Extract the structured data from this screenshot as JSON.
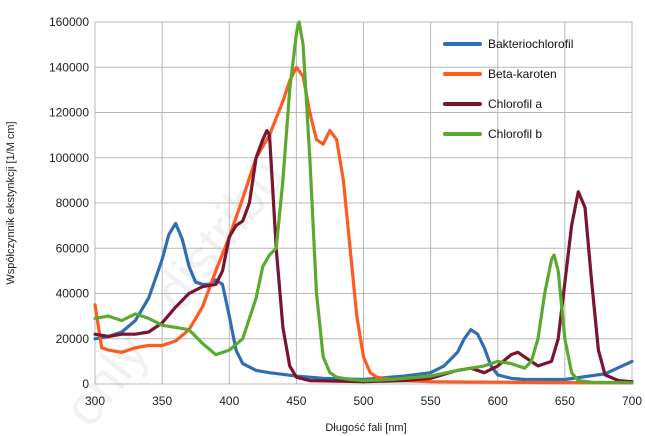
{
  "chart_data": {
    "type": "line",
    "title": "",
    "xlabel": "Długość fali [nm]",
    "ylabel": "Współczynnik ekstynkcji [1/M cm]",
    "xlim": [
      300,
      700
    ],
    "ylim": [
      0,
      160000
    ],
    "xticks": [
      300,
      350,
      400,
      450,
      500,
      550,
      600,
      650,
      700
    ],
    "yticks": [
      0,
      20000,
      40000,
      60000,
      80000,
      100000,
      120000,
      140000,
      160000
    ],
    "grid": true,
    "legend_position": "top-right",
    "watermark": "only - distribu",
    "series": [
      {
        "name": "Bakteriochlorofil",
        "color": "#2f6eb5",
        "x": [
          300,
          310,
          320,
          330,
          340,
          350,
          355,
          360,
          365,
          370,
          375,
          380,
          385,
          390,
          395,
          400,
          405,
          410,
          420,
          430,
          450,
          470,
          500,
          530,
          550,
          560,
          570,
          575,
          580,
          585,
          590,
          595,
          600,
          610,
          620,
          650,
          680,
          700
        ],
        "y": [
          20000,
          21000,
          23000,
          28000,
          38000,
          55000,
          66000,
          71000,
          64000,
          52000,
          45000,
          44000,
          44000,
          46000,
          44000,
          30000,
          15000,
          9000,
          6000,
          5000,
          3500,
          2500,
          2000,
          3500,
          5000,
          8000,
          14000,
          20000,
          24000,
          22000,
          16000,
          8000,
          4000,
          2500,
          2000,
          2000,
          4500,
          10000
        ]
      },
      {
        "name": "Beta-karoten",
        "color": "#ff5a1f",
        "x": [
          300,
          305,
          310,
          320,
          330,
          340,
          350,
          360,
          370,
          380,
          390,
          400,
          410,
          420,
          430,
          440,
          445,
          450,
          455,
          460,
          465,
          470,
          475,
          480,
          485,
          490,
          495,
          500,
          505,
          510,
          520,
          530,
          550,
          600,
          650,
          700
        ],
        "y": [
          35000,
          16000,
          15000,
          14000,
          16000,
          17000,
          17000,
          19000,
          24000,
          34000,
          50000,
          65000,
          82000,
          100000,
          110000,
          125000,
          134000,
          140000,
          136000,
          120000,
          108000,
          106000,
          112000,
          108000,
          90000,
          60000,
          30000,
          12000,
          5000,
          3000,
          2000,
          1500,
          1000,
          800,
          600,
          500
        ]
      },
      {
        "name": "Chlorofil a",
        "color": "#7a1530",
        "x": [
          300,
          310,
          320,
          330,
          340,
          350,
          360,
          370,
          380,
          390,
          395,
          400,
          405,
          410,
          415,
          420,
          425,
          428,
          430,
          432,
          435,
          440,
          445,
          450,
          460,
          500,
          530,
          550,
          570,
          580,
          590,
          600,
          610,
          615,
          620,
          630,
          640,
          645,
          650,
          655,
          660,
          665,
          670,
          675,
          680,
          690,
          700
        ],
        "y": [
          22000,
          21000,
          22000,
          22000,
          23000,
          27000,
          34000,
          40000,
          43000,
          44000,
          50000,
          65000,
          70000,
          72000,
          80000,
          100000,
          108000,
          112000,
          110000,
          90000,
          60000,
          25000,
          8000,
          3000,
          1500,
          1000,
          1500,
          2500,
          6000,
          7000,
          5000,
          8000,
          13000,
          14000,
          12000,
          8000,
          10000,
          20000,
          45000,
          70000,
          85000,
          78000,
          45000,
          15000,
          4000,
          1500,
          1000
        ]
      },
      {
        "name": "Chlorofil b",
        "color": "#5aaa2e",
        "x": [
          300,
          310,
          320,
          330,
          340,
          350,
          360,
          370,
          380,
          390,
          400,
          410,
          420,
          425,
          430,
          435,
          440,
          445,
          450,
          452,
          455,
          460,
          465,
          470,
          475,
          480,
          490,
          500,
          520,
          550,
          570,
          590,
          600,
          610,
          620,
          625,
          630,
          635,
          640,
          642,
          645,
          650,
          655,
          660,
          670,
          700
        ],
        "y": [
          29000,
          30000,
          28000,
          31000,
          29000,
          26000,
          25000,
          24000,
          18000,
          13000,
          15000,
          20000,
          38000,
          52000,
          57000,
          60000,
          90000,
          130000,
          155000,
          160000,
          150000,
          100000,
          40000,
          12000,
          5000,
          3000,
          2000,
          1500,
          2000,
          3500,
          6000,
          8000,
          10000,
          9000,
          7000,
          10000,
          20000,
          40000,
          55000,
          57000,
          50000,
          20000,
          5000,
          1500,
          800,
          500
        ]
      }
    ]
  }
}
